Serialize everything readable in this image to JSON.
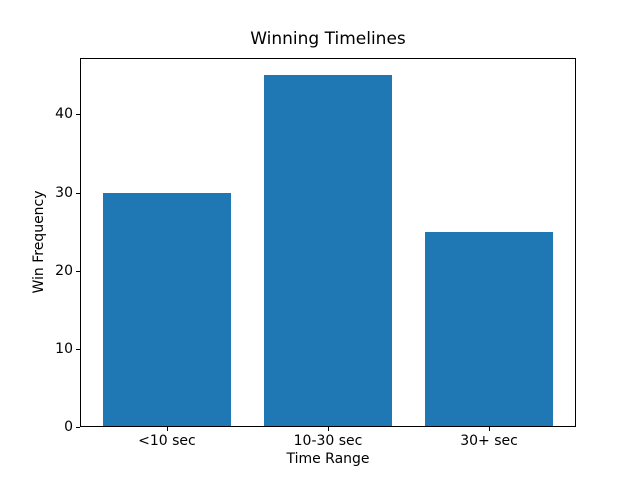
{
  "chart_data": {
    "type": "bar",
    "title": "Winning Timelines",
    "xlabel": "Time Range",
    "ylabel": "Win Frequency",
    "categories": [
      "<10 sec",
      "10-30 sec",
      "30+ sec"
    ],
    "values": [
      30,
      45,
      25
    ],
    "yticks": [
      0,
      10,
      20,
      30,
      40
    ],
    "ylim": [
      0,
      47.25
    ],
    "xlim": [
      -0.54,
      2.54
    ],
    "bar_width": 0.8,
    "bar_color": "#1f77b4",
    "axis_color": "#000000",
    "background_color": "#ffffff",
    "grid": false,
    "legend": "none"
  }
}
